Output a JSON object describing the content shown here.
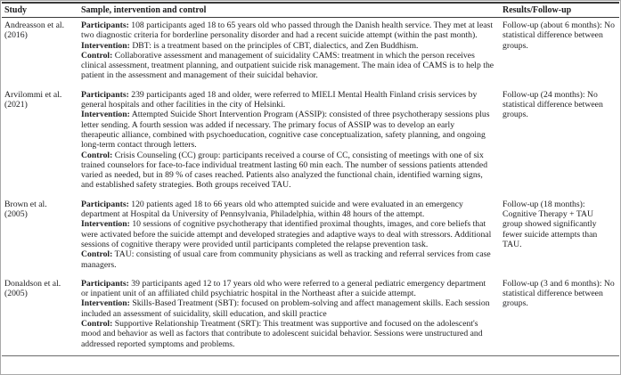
{
  "header": {
    "col_study": "Study",
    "col_sample": "Sample, intervention and control",
    "col_results": "Results/Follow-up"
  },
  "rows": [
    {
      "study": "Andreasson et al. (2016)",
      "participants_label": "Participants:",
      "participants": "108 participants aged 18 to 65 years old who passed through the Danish health service. They met at least two diagnostic criteria for borderline personality disorder and had a recent suicide attempt (within the past month).",
      "intervention_label": "Intervention:",
      "intervention": "DBT: is a treatment based on the principles of CBT, dialectics, and Zen Buddhism.",
      "control_label": "Control:",
      "control": "Collaborative assessment and management of suicidality CAMS: treatment in which the person receives clinical assessment, treatment planning, and outpatient suicide risk management. The main idea of CAMS is to help the patient in the assessment and management of their suicidal behavior.",
      "results": "Follow-up (about 6 months): No statistical difference between groups."
    },
    {
      "study": "Arvilommi et al. (2021)",
      "participants_label": "Participants:",
      "participants": "239 participants aged 18 and older, were referred to MIELI Mental Health Finland crisis services by general hospitals and other facilities in the city of Helsinki.",
      "intervention_label": "Intervention:",
      "intervention": "Attempted Suicide Short Intervention Program (ASSIP): consisted of three psychotherapy sessions plus letter sending. A fourth session was added if necessary. The primary focus of ASSIP was to develop an early therapeutic alliance, combined with psychoeducation, cognitive case conceptualization, safety planning, and ongoing long-term contact through letters.",
      "control_label": "Control:",
      "control": "Crisis Counseling (CC) group: participants received a course of CC, consisting of meetings with one of six trained counselors for face-to-face individual treatment lasting 60 min each. The number of sessions patients attended varied as needed, but in 89 % of cases reached. Patients also analyzed the functional chain, identified warning signs, and established safety strategies. Both groups received TAU.",
      "results": "Follow-up (24 months): No statistical difference between groups."
    },
    {
      "study": "Brown et al. (2005)",
      "participants_label": "Participants:",
      "participants": "120 patients aged 18 to 66 years old who attempted suicide and were evaluated in an emergency department at Hospital da University of Pennsylvania, Philadelphia, within 48 hours of the attempt.",
      "intervention_label": "Intervention:",
      "intervention": "10 sessions of cognitive psychotherapy that identified proximal thoughts, images, and core beliefs that were activated before the suicide attempt and developed strategies and adaptive ways to deal with stressors. Additional sessions of cognitive therapy were provided until participants completed the relapse prevention task.",
      "control_label": "Control:",
      "control": "TAU: consisting of usual care from community physicians as well as tracking and referral services from case managers.",
      "results": "Follow-up (18 months): Cognitive Therapy + TAU group showed significantly fewer suicide attempts than TAU."
    },
    {
      "study": "Donaldson et al. (2005)",
      "participants_label": "Participants:",
      "participants": "39 participants aged 12 to 17 years old who were referred to a general pediatric emergency department or inpatient unit of an affiliated child psychiatric hospital in the Northeast after a suicide attempt.",
      "intervention_label": "Intervention:",
      "intervention": "Skills-Based Treatment (SBT): focused on problem-solving and affect management skills. Each session included an assessment of suicidality, skill education, and skill practice",
      "control_label": "Control:",
      "control": "Supportive Relationship Treatment (SRT): This treatment was supportive and focused on the adolescent's mood and behavior as well as factors that contribute to adolescent suicidal behavior. Sessions were unstructured and addressed reported symptoms and problems.",
      "results": "Follow-up (3 and 6 months): No statistical difference between groups."
    }
  ]
}
